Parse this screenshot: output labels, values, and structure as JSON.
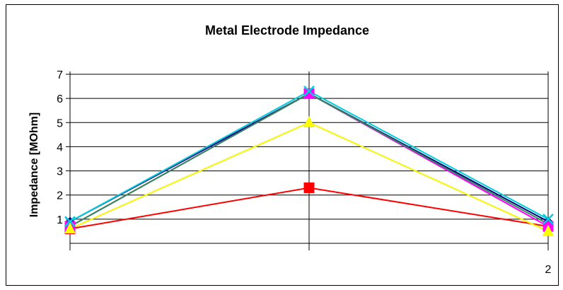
{
  "chart_data": {
    "type": "line",
    "title": "Metal Electrode Impedance",
    "xlabel": "",
    "ylabel": "Impedance [MOhm]",
    "ylim": [
      0,
      7
    ],
    "yticks": [
      "1",
      "2",
      "3",
      "4",
      "5",
      "6",
      "7"
    ],
    "categories": [
      "",
      "",
      "2"
    ],
    "grid": true,
    "legend": "none",
    "series": [
      {
        "color": "#000080",
        "marker": "diamond",
        "values": [
          0.9,
          6.2,
          0.9
        ]
      },
      {
        "color": "#FF0000",
        "marker": "square",
        "values": [
          0.6,
          2.3,
          0.7
        ]
      },
      {
        "color": "#4169E1",
        "marker": "triangle",
        "values": [
          0.6,
          5.0,
          0.5
        ]
      },
      {
        "color": "#FF00FF",
        "marker": "square",
        "values": [
          0.7,
          6.2,
          0.7
        ]
      },
      {
        "color": "#2E8B57",
        "marker": "none",
        "values": [
          0.7,
          6.2,
          0.8
        ]
      },
      {
        "color": "#FFFF00",
        "marker": "triangle",
        "values": [
          0.6,
          5.0,
          0.5
        ]
      },
      {
        "color": "#00CCDD",
        "marker": "x",
        "values": [
          0.9,
          6.3,
          1.0
        ]
      }
    ]
  }
}
